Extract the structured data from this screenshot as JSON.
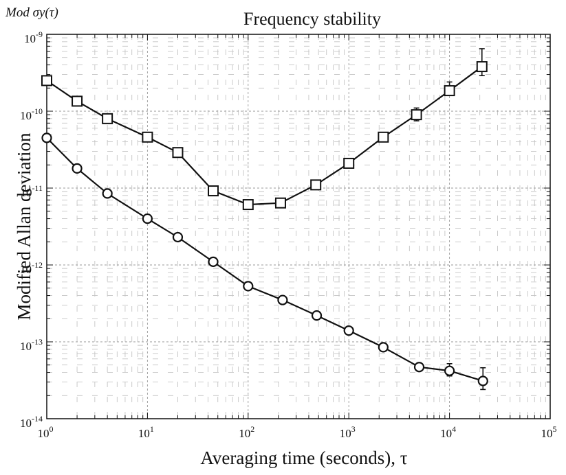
{
  "chart_data": {
    "type": "line",
    "title": "Frequency stability",
    "corner_label": "Mod σy(τ)",
    "xlabel": "Averaging time (seconds), τ",
    "ylabel": "Modified Allan deviation",
    "xscale": "log",
    "yscale": "log",
    "xlim": [
      1,
      100000
    ],
    "ylim": [
      1e-14,
      1e-09
    ],
    "x_ticks": [
      {
        "value": 1,
        "label": "10^0"
      },
      {
        "value": 10,
        "label": "10^1"
      },
      {
        "value": 100,
        "label": "10^2"
      },
      {
        "value": 1000,
        "label": "10^3"
      },
      {
        "value": 10000,
        "label": "10^4"
      },
      {
        "value": 100000,
        "label": "10^5"
      }
    ],
    "y_ticks": [
      {
        "value": 1e-14,
        "label": "10^-14"
      },
      {
        "value": 1e-13,
        "label": "10^-13"
      },
      {
        "value": 1e-12,
        "label": "10^-12"
      },
      {
        "value": 1e-11,
        "label": "10^-11"
      },
      {
        "value": 1e-10,
        "label": "10^-10"
      },
      {
        "value": 1e-09,
        "label": "10^-9"
      }
    ],
    "grid": true,
    "series": [
      {
        "marker": "square",
        "x": [
          1,
          2,
          4,
          10,
          20,
          45,
          100,
          210,
          470,
          1000,
          2200,
          4700,
          10000,
          21000
        ],
        "y": [
          2.5e-10,
          1.35e-10,
          8e-11,
          4.6e-11,
          2.9e-11,
          9.2e-12,
          6.1e-12,
          6.4e-12,
          1.1e-11,
          2.1e-11,
          4.6e-11,
          9e-11,
          1.85e-10,
          3.8e-10
        ],
        "err_upper": [
          null,
          null,
          null,
          null,
          null,
          null,
          null,
          null,
          null,
          null,
          null,
          1.1e-10,
          2.4e-10,
          6.5e-10
        ],
        "err_lower": [
          null,
          null,
          null,
          null,
          null,
          null,
          null,
          null,
          null,
          null,
          null,
          7.5e-11,
          1.6e-10,
          2.9e-10
        ]
      },
      {
        "marker": "circle",
        "x": [
          1,
          2,
          4,
          10,
          20,
          45,
          100,
          220,
          480,
          1000,
          2200,
          5000,
          10000,
          21500
        ],
        "y": [
          4.5e-11,
          1.8e-11,
          8.5e-12,
          4e-12,
          2.3e-12,
          1.1e-12,
          5.3e-13,
          3.5e-13,
          2.2e-13,
          1.4e-13,
          8.5e-14,
          4.7e-14,
          4.2e-14,
          3.1e-14
        ],
        "err_upper": [
          null,
          null,
          null,
          null,
          null,
          null,
          null,
          null,
          null,
          null,
          null,
          null,
          5.2e-14,
          4.6e-14
        ],
        "err_lower": [
          null,
          null,
          null,
          null,
          null,
          null,
          null,
          null,
          null,
          null,
          null,
          null,
          3.6e-14,
          2.4e-14
        ]
      }
    ]
  }
}
